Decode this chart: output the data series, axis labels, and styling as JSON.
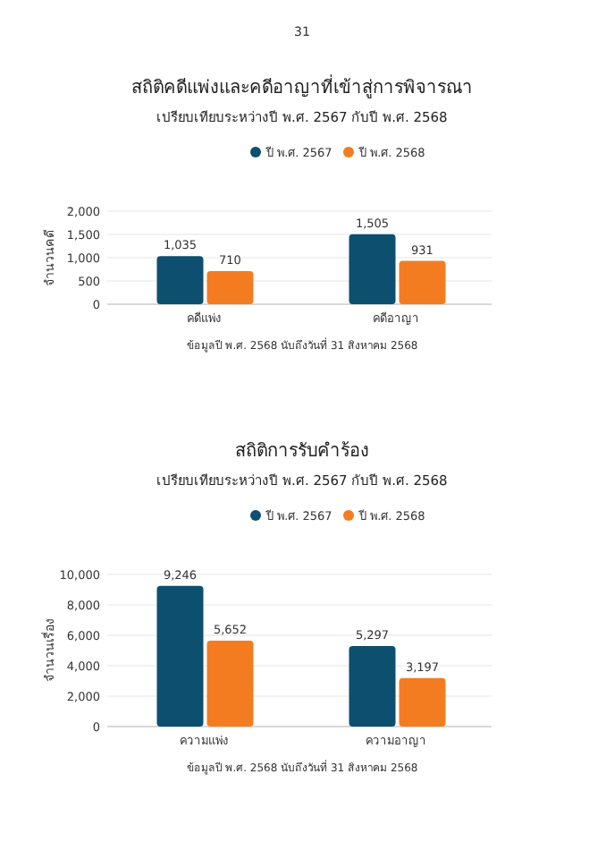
{
  "chart_data": [
    {
      "type": "bar",
      "title": "สถิติคดีแพ่งและคดีอาญาที่เข้าสู่การพิจารณา",
      "subtitle": "เปรียบเทียบระหว่างปี พ.ศ. 2567 กับปี พ.ศ. 2568",
      "ylabel": "จำนวนคดี",
      "categories": [
        "คดีแพ่ง",
        "คดีอาญา"
      ],
      "series": [
        {
          "name": "ปี พ.ศ. 2567",
          "color": "#0d4f6e",
          "values": [
            1035,
            1505
          ],
          "value_labels": [
            "1,035",
            "1,505"
          ]
        },
        {
          "name": "ปี พ.ศ. 2568",
          "color": "#f47c20",
          "values": [
            710,
            931
          ],
          "value_labels": [
            "710",
            "931"
          ]
        }
      ],
      "ylim": [
        0,
        2000
      ],
      "yticks": [
        {
          "value": 0,
          "label": "0"
        },
        {
          "value": 500,
          "label": "500"
        },
        {
          "value": 1000,
          "label": "1,000"
        },
        {
          "value": 1500,
          "label": "1,500"
        },
        {
          "value": 2000,
          "label": "2,000"
        }
      ],
      "grid": "y",
      "legend": "top",
      "annotations": [
        "31",
        "ข้อมูลปี พ.ศ. 2568 นับถึงวันที่ 31 สิงหาคม 2568"
      ]
    },
    {
      "type": "bar",
      "title": "สถิติการรับคำร้อง",
      "subtitle": "เปรียบเทียบระหว่างปี พ.ศ. 2567 กับปี พ.ศ. 2568",
      "ylabel": "จำนวนเรื่อง",
      "categories": [
        "ความแพ่ง",
        "ความอาญา"
      ],
      "series": [
        {
          "name": "ปี พ.ศ. 2567",
          "color": "#0d4f6e",
          "values": [
            9246,
            5297
          ],
          "value_labels": [
            "9,246",
            "5,297"
          ]
        },
        {
          "name": "ปี พ.ศ. 2568",
          "color": "#f47c20",
          "values": [
            5652,
            3197
          ],
          "value_labels": [
            "5,652",
            "3,197"
          ]
        }
      ],
      "ylim": [
        0,
        10000
      ],
      "yticks": [
        {
          "value": 0,
          "label": "0"
        },
        {
          "value": 2000,
          "label": "2,000"
        },
        {
          "value": 4000,
          "label": "4,000"
        },
        {
          "value": 6000,
          "label": "6,000"
        },
        {
          "value": 8000,
          "label": "8,000"
        },
        {
          "value": 10000,
          "label": "10,000"
        }
      ],
      "grid": "y",
      "legend": "top",
      "annotations": [
        "ข้อมูลปี พ.ศ. 2568 นับถึงวันที่ 31 สิงหาคม 2568"
      ]
    }
  ]
}
